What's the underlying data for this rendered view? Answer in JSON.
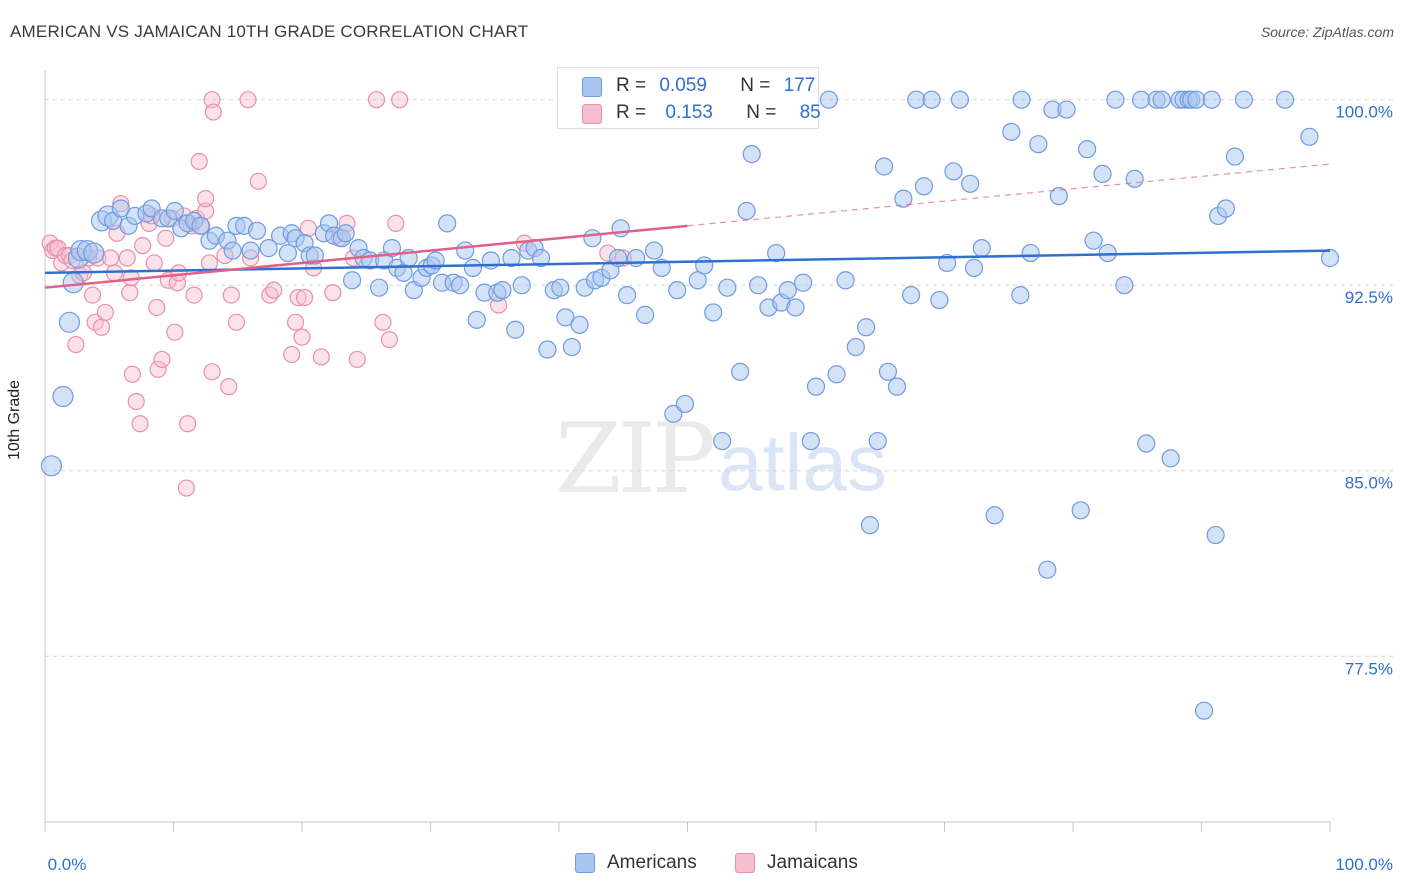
{
  "header": {
    "title": "AMERICAN VS JAMAICAN 10TH GRADE CORRELATION CHART",
    "source": "Source: ZipAtlas.com"
  },
  "legend_top": {
    "rows": [
      {
        "r_label": "R =",
        "r_value": "0.059",
        "n_label": "N =",
        "n_value": "177"
      },
      {
        "r_label": "R =",
        "r_value": "0.153",
        "n_label": "N =",
        "n_value": "85"
      }
    ]
  },
  "legend_bottom": {
    "items": [
      "Americans",
      "Jamaicans"
    ]
  },
  "watermark": {
    "zip": "ZIP",
    "atlas": "atlas"
  },
  "colors": {
    "americans_fill": "#a9c6f0",
    "americans_stroke": "#6f9be0",
    "americans_line": "#2f6fd0",
    "jamaicans_fill": "#f6bfd0",
    "jamaicans_stroke": "#e890ab",
    "jamaicans_line": "#e0608a",
    "tick_label": "#2f6fd0"
  },
  "chart_data": {
    "type": "scatter",
    "title": "AMERICAN VS JAMAICAN 10TH GRADE CORRELATION CHART",
    "xlabel": "",
    "ylabel": "10th Grade",
    "xlim": [
      0,
      100
    ],
    "ylim": [
      70.8,
      101.2
    ],
    "x_tick_labels": [
      "0.0%",
      "100.0%"
    ],
    "y_ticks": [
      77.5,
      85.0,
      92.5,
      100.0
    ],
    "y_tick_labels": [
      "77.5%",
      "85.0%",
      "92.5%",
      "100.0%"
    ],
    "grid": "horizontal dashed",
    "legend_position": "top-center and bottom",
    "series": [
      {
        "name": "Americans",
        "R": 0.059,
        "N": 177,
        "trend": {
          "x": [
            0,
            100
          ],
          "y": [
            93.0,
            93.9
          ]
        },
        "points": [
          [
            0.5,
            85.2
          ],
          [
            1.4,
            88.0
          ],
          [
            1.9,
            91.0
          ],
          [
            2.2,
            92.6
          ],
          [
            2.6,
            93.6
          ],
          [
            2.8,
            93.9
          ],
          [
            3.3,
            93.9
          ],
          [
            3.8,
            93.8
          ],
          [
            4.4,
            95.1
          ],
          [
            4.9,
            95.3
          ],
          [
            5.3,
            95.1
          ],
          [
            5.9,
            95.6
          ],
          [
            6.5,
            94.9
          ],
          [
            7.0,
            95.3
          ],
          [
            7.9,
            95.4
          ],
          [
            8.3,
            95.6
          ],
          [
            9.1,
            95.2
          ],
          [
            9.6,
            95.2
          ],
          [
            10.1,
            95.5
          ],
          [
            10.6,
            94.8
          ],
          [
            11.1,
            95.0
          ],
          [
            11.6,
            95.1
          ],
          [
            12.1,
            94.9
          ],
          [
            12.8,
            94.3
          ],
          [
            13.3,
            94.5
          ],
          [
            14.2,
            94.3
          ],
          [
            14.6,
            93.9
          ],
          [
            14.9,
            94.9
          ],
          [
            15.5,
            94.9
          ],
          [
            16.0,
            93.9
          ],
          [
            16.5,
            94.7
          ],
          [
            17.4,
            94.0
          ],
          [
            18.3,
            94.5
          ],
          [
            18.9,
            93.8
          ],
          [
            19.2,
            94.6
          ],
          [
            19.5,
            94.4
          ],
          [
            20.2,
            94.2
          ],
          [
            20.6,
            93.7
          ],
          [
            21.0,
            93.7
          ],
          [
            21.7,
            94.6
          ],
          [
            22.1,
            95.0
          ],
          [
            22.5,
            94.5
          ],
          [
            23.1,
            94.4
          ],
          [
            23.4,
            94.6
          ],
          [
            23.9,
            92.7
          ],
          [
            24.4,
            94.0
          ],
          [
            24.8,
            93.6
          ],
          [
            25.3,
            93.5
          ],
          [
            26.0,
            92.4
          ],
          [
            26.4,
            93.5
          ],
          [
            27.0,
            94.0
          ],
          [
            27.4,
            93.2
          ],
          [
            27.9,
            93.0
          ],
          [
            28.3,
            93.6
          ],
          [
            28.7,
            92.3
          ],
          [
            29.3,
            92.8
          ],
          [
            29.7,
            93.2
          ],
          [
            30.1,
            93.3
          ],
          [
            30.4,
            93.5
          ],
          [
            30.9,
            92.6
          ],
          [
            31.3,
            95.0
          ],
          [
            31.8,
            92.6
          ],
          [
            32.3,
            92.5
          ],
          [
            32.7,
            93.9
          ],
          [
            33.3,
            93.2
          ],
          [
            33.6,
            91.1
          ],
          [
            34.2,
            92.2
          ],
          [
            34.7,
            93.5
          ],
          [
            35.2,
            92.2
          ],
          [
            35.6,
            92.3
          ],
          [
            36.3,
            93.6
          ],
          [
            36.6,
            90.7
          ],
          [
            37.1,
            92.5
          ],
          [
            37.6,
            93.9
          ],
          [
            38.1,
            94.0
          ],
          [
            38.6,
            93.6
          ],
          [
            39.1,
            89.9
          ],
          [
            39.6,
            92.3
          ],
          [
            40.1,
            92.4
          ],
          [
            40.5,
            91.2
          ],
          [
            41.0,
            90.0
          ],
          [
            41.6,
            90.9
          ],
          [
            42.0,
            92.4
          ],
          [
            42.6,
            94.4
          ],
          [
            42.8,
            92.7
          ],
          [
            43.3,
            92.8
          ],
          [
            44.0,
            93.1
          ],
          [
            44.6,
            93.6
          ],
          [
            44.8,
            94.8
          ],
          [
            45.3,
            92.1
          ],
          [
            46.0,
            93.6
          ],
          [
            46.7,
            91.3
          ],
          [
            47.4,
            93.9
          ],
          [
            48.0,
            93.2
          ],
          [
            48.9,
            87.3
          ],
          [
            49.2,
            92.3
          ],
          [
            49.8,
            87.7
          ],
          [
            50.8,
            92.7
          ],
          [
            51.3,
            93.3
          ],
          [
            52.0,
            91.4
          ],
          [
            52.7,
            86.2
          ],
          [
            53.1,
            92.4
          ],
          [
            54.1,
            89.0
          ],
          [
            54.6,
            95.5
          ],
          [
            55.0,
            97.8
          ],
          [
            55.5,
            92.5
          ],
          [
            56.3,
            91.6
          ],
          [
            56.9,
            93.8
          ],
          [
            57.3,
            91.8
          ],
          [
            57.8,
            92.3
          ],
          [
            58.4,
            91.6
          ],
          [
            59.0,
            92.6
          ],
          [
            59.6,
            86.2
          ],
          [
            60.0,
            88.4
          ],
          [
            61.0,
            100.0
          ],
          [
            61.6,
            88.9
          ],
          [
            62.3,
            92.7
          ],
          [
            63.1,
            90.0
          ],
          [
            63.9,
            90.8
          ],
          [
            64.2,
            82.8
          ],
          [
            64.8,
            86.2
          ],
          [
            65.3,
            97.3
          ],
          [
            65.6,
            89.0
          ],
          [
            66.3,
            88.4
          ],
          [
            66.8,
            96.0
          ],
          [
            67.4,
            92.1
          ],
          [
            67.8,
            100.0
          ],
          [
            68.4,
            96.5
          ],
          [
            69.0,
            100.0
          ],
          [
            69.6,
            91.9
          ],
          [
            70.2,
            93.4
          ],
          [
            70.7,
            97.1
          ],
          [
            71.2,
            100.0
          ],
          [
            72.0,
            96.6
          ],
          [
            72.3,
            93.2
          ],
          [
            72.9,
            94.0
          ],
          [
            73.9,
            83.2
          ],
          [
            75.2,
            98.7
          ],
          [
            75.9,
            92.1
          ],
          [
            76.0,
            100.0
          ],
          [
            76.7,
            93.8
          ],
          [
            77.3,
            98.2
          ],
          [
            78.0,
            81.0
          ],
          [
            78.4,
            99.6
          ],
          [
            78.9,
            96.1
          ],
          [
            79.5,
            99.6
          ],
          [
            80.6,
            83.4
          ],
          [
            81.1,
            98.0
          ],
          [
            81.6,
            94.3
          ],
          [
            82.3,
            97.0
          ],
          [
            82.7,
            93.8
          ],
          [
            83.3,
            100.0
          ],
          [
            84.0,
            92.5
          ],
          [
            84.8,
            96.8
          ],
          [
            85.3,
            100.0
          ],
          [
            85.7,
            86.1
          ],
          [
            86.5,
            100.0
          ],
          [
            86.9,
            100.0
          ],
          [
            87.6,
            85.5
          ],
          [
            88.3,
            100.0
          ],
          [
            88.6,
            100.0
          ],
          [
            89.0,
            100.0
          ],
          [
            89.2,
            100.0
          ],
          [
            89.6,
            100.0
          ],
          [
            90.2,
            75.3
          ],
          [
            90.8,
            100.0
          ],
          [
            91.1,
            82.4
          ],
          [
            91.3,
            95.3
          ],
          [
            91.9,
            95.6
          ],
          [
            92.6,
            97.7
          ],
          [
            93.3,
            100.0
          ],
          [
            96.5,
            100.0
          ],
          [
            98.4,
            98.5
          ],
          [
            100.0,
            93.6
          ]
        ]
      },
      {
        "name": "Jamaicans",
        "R": 0.153,
        "N": 85,
        "trend": {
          "x": [
            0,
            50
          ],
          "y": [
            92.4,
            94.9
          ]
        },
        "trend_dashed": {
          "x": [
            50,
            100
          ],
          "y": [
            94.9,
            97.4
          ]
        },
        "points": [
          [
            0.4,
            94.2
          ],
          [
            0.6,
            93.9
          ],
          [
            0.8,
            94.0
          ],
          [
            1.0,
            94.0
          ],
          [
            1.3,
            93.4
          ],
          [
            1.6,
            93.7
          ],
          [
            1.9,
            93.7
          ],
          [
            2.1,
            93.5
          ],
          [
            2.4,
            90.1
          ],
          [
            2.7,
            92.9
          ],
          [
            3.0,
            93.0
          ],
          [
            3.4,
            93.6
          ],
          [
            3.7,
            92.1
          ],
          [
            3.9,
            91.0
          ],
          [
            4.1,
            93.6
          ],
          [
            4.4,
            90.8
          ],
          [
            4.7,
            91.4
          ],
          [
            5.1,
            93.6
          ],
          [
            5.4,
            93.0
          ],
          [
            5.6,
            94.6
          ],
          [
            5.9,
            95.8
          ],
          [
            6.4,
            93.6
          ],
          [
            6.6,
            92.2
          ],
          [
            6.7,
            92.8
          ],
          [
            6.8,
            88.9
          ],
          [
            7.1,
            87.8
          ],
          [
            7.4,
            86.9
          ],
          [
            7.6,
            94.1
          ],
          [
            8.1,
            95.0
          ],
          [
            8.3,
            95.3
          ],
          [
            8.5,
            93.4
          ],
          [
            8.7,
            91.6
          ],
          [
            8.8,
            89.1
          ],
          [
            9.1,
            89.5
          ],
          [
            9.4,
            94.4
          ],
          [
            9.6,
            92.7
          ],
          [
            9.9,
            95.2
          ],
          [
            10.1,
            90.6
          ],
          [
            10.3,
            92.6
          ],
          [
            10.4,
            93.0
          ],
          [
            10.8,
            95.3
          ],
          [
            11.0,
            84.3
          ],
          [
            11.1,
            86.9
          ],
          [
            11.4,
            94.9
          ],
          [
            11.6,
            92.1
          ],
          [
            11.8,
            95.2
          ],
          [
            12.0,
            97.5
          ],
          [
            12.2,
            94.9
          ],
          [
            12.5,
            95.5
          ],
          [
            12.8,
            93.4
          ],
          [
            13.0,
            89.0
          ],
          [
            13.0,
            100.0
          ],
          [
            13.1,
            99.5
          ],
          [
            14.0,
            93.7
          ],
          [
            14.3,
            88.4
          ],
          [
            14.5,
            92.1
          ],
          [
            14.9,
            91.0
          ],
          [
            15.8,
            100.0
          ],
          [
            16.0,
            93.6
          ],
          [
            16.6,
            96.7
          ],
          [
            17.5,
            92.1
          ],
          [
            17.8,
            92.3
          ],
          [
            19.2,
            89.7
          ],
          [
            19.5,
            91.0
          ],
          [
            19.7,
            92.0
          ],
          [
            20.0,
            90.4
          ],
          [
            20.2,
            92.0
          ],
          [
            20.5,
            94.8
          ],
          [
            20.9,
            93.2
          ],
          [
            21.5,
            89.6
          ],
          [
            22.4,
            92.2
          ],
          [
            22.9,
            94.4
          ],
          [
            23.5,
            95.0
          ],
          [
            24.0,
            93.6
          ],
          [
            24.3,
            89.5
          ],
          [
            25.8,
            100.0
          ],
          [
            26.3,
            91.0
          ],
          [
            26.8,
            90.3
          ],
          [
            27.3,
            95.0
          ],
          [
            27.6,
            100.0
          ],
          [
            35.3,
            91.7
          ],
          [
            37.3,
            94.2
          ],
          [
            43.8,
            93.8
          ],
          [
            45.0,
            93.6
          ],
          [
            12.5,
            96.0
          ]
        ]
      }
    ]
  }
}
